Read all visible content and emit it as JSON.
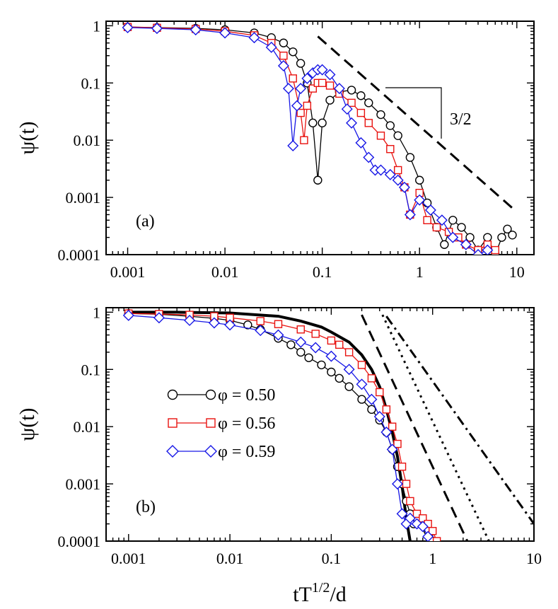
{
  "chart_data": [
    {
      "type": "line",
      "panel_label": "(a)",
      "xlabel": "",
      "ylabel": "ψ(t)",
      "xscale": "log",
      "yscale": "log",
      "xlim": [
        0.0006,
        15
      ],
      "ylim": [
        0.0001,
        1.2
      ],
      "x_ticks": [
        "0.001",
        "0.01",
        "0.1",
        "1",
        "10"
      ],
      "y_ticks": [
        "0.0001",
        "0.001",
        "0.01",
        "0.1",
        "1"
      ],
      "series": [
        {
          "name": "φ = 0.50",
          "color": "#000000",
          "marker": "circle",
          "x": [
            0.001,
            0.002,
            0.005,
            0.01,
            0.02,
            0.03,
            0.04,
            0.05,
            0.06,
            0.07,
            0.08,
            0.09,
            0.1,
            0.12,
            0.15,
            0.2,
            0.25,
            0.3,
            0.4,
            0.5,
            0.6,
            0.8,
            1.0,
            1.2,
            1.5,
            1.8,
            2.2,
            2.7,
            3.3,
            4,
            5,
            6,
            7,
            8,
            9
          ],
          "y": [
            0.95,
            0.93,
            0.9,
            0.85,
            0.75,
            0.62,
            0.5,
            0.35,
            0.22,
            0.1,
            0.02,
            0.002,
            0.02,
            0.05,
            0.07,
            0.075,
            0.06,
            0.045,
            0.028,
            0.018,
            0.012,
            0.005,
            0.002,
            0.0008,
            0.0003,
            0.00015,
            0.0004,
            0.0003,
            0.0002,
            0.00012,
            0.0002,
            0.0001,
            0.0002,
            0.00028,
            0.00022
          ]
        },
        {
          "name": "φ = 0.56",
          "color": "#e8120f",
          "marker": "square",
          "x": [
            0.001,
            0.002,
            0.005,
            0.01,
            0.02,
            0.03,
            0.04,
            0.05,
            0.06,
            0.065,
            0.07,
            0.08,
            0.09,
            0.1,
            0.12,
            0.15,
            0.2,
            0.25,
            0.3,
            0.4,
            0.5,
            0.6,
            0.7,
            0.8,
            1.0,
            1.2,
            1.5,
            2,
            2.5,
            3,
            4,
            5,
            6
          ],
          "y": [
            0.95,
            0.92,
            0.88,
            0.8,
            0.68,
            0.5,
            0.3,
            0.12,
            0.03,
            0.01,
            0.04,
            0.08,
            0.1,
            0.1,
            0.09,
            0.065,
            0.045,
            0.03,
            0.02,
            0.012,
            0.007,
            0.003,
            0.0015,
            0.0005,
            0.0012,
            0.0004,
            0.0003,
            0.00025,
            0.0002,
            0.00015,
            0.00012,
            0.00015,
            0.00012
          ]
        },
        {
          "name": "φ = 0.59",
          "color": "#1717e6",
          "marker": "diamond",
          "x": [
            0.001,
            0.002,
            0.005,
            0.01,
            0.02,
            0.03,
            0.04,
            0.045,
            0.05,
            0.055,
            0.06,
            0.07,
            0.08,
            0.09,
            0.1,
            0.12,
            0.15,
            0.18,
            0.2,
            0.25,
            0.3,
            0.35,
            0.4,
            0.5,
            0.6,
            0.7,
            0.8,
            1.0,
            1.3,
            1.7,
            2.2,
            3,
            4,
            5
          ],
          "y": [
            0.93,
            0.9,
            0.85,
            0.75,
            0.62,
            0.42,
            0.2,
            0.08,
            0.008,
            0.04,
            0.08,
            0.12,
            0.15,
            0.17,
            0.17,
            0.14,
            0.08,
            0.035,
            0.02,
            0.009,
            0.005,
            0.003,
            0.003,
            0.0025,
            0.002,
            0.0015,
            0.0005,
            0.0009,
            0.0006,
            0.0004,
            0.0002,
            0.00015,
            0.0001,
            0.00012
          ]
        }
      ],
      "lines": [
        {
          "name": "dashed power law",
          "style": "dashed",
          "x": [
            0.09,
            9.0
          ],
          "y": [
            0.65,
            0.00065
          ]
        }
      ],
      "annotations": [
        {
          "text": "3/2",
          "label": "slope triangle"
        }
      ]
    },
    {
      "type": "line",
      "panel_label": "(b)",
      "xlabel": "tT",
      "xlabel_sup": "1/2",
      "xlabel_tail": "/d",
      "ylabel": "ψ(t)",
      "xscale": "log",
      "yscale": "log",
      "xlim": [
        0.0006,
        10
      ],
      "ylim": [
        0.0001,
        1.2
      ],
      "x_ticks": [
        "0.001",
        "0.01",
        "0.1",
        "1",
        "10"
      ],
      "y_ticks": [
        "0.0001",
        "0.001",
        "0.01",
        "0.1",
        "1"
      ],
      "series": [
        {
          "name": "φ = 0.50",
          "color": "#000000",
          "marker": "circle",
          "x": [
            0.001,
            0.002,
            0.004,
            0.007,
            0.01,
            0.015,
            0.02,
            0.03,
            0.04,
            0.05,
            0.06,
            0.08,
            0.1,
            0.12,
            0.15,
            0.2,
            0.25,
            0.3,
            0.35,
            0.4,
            0.45,
            0.5,
            0.55,
            0.6,
            0.65,
            0.7,
            0.8,
            0.9,
            1.0
          ],
          "y": [
            0.95,
            0.92,
            0.85,
            0.78,
            0.72,
            0.6,
            0.5,
            0.35,
            0.27,
            0.2,
            0.16,
            0.12,
            0.09,
            0.07,
            0.05,
            0.03,
            0.02,
            0.013,
            0.008,
            0.004,
            0.002,
            0.001,
            0.0005,
            0.0003,
            0.0002,
            0.00025,
            0.0002,
            0.00015,
            0.0001
          ]
        },
        {
          "name": "φ = 0.56",
          "color": "#e8120f",
          "marker": "square",
          "x": [
            0.001,
            0.002,
            0.004,
            0.007,
            0.01,
            0.02,
            0.03,
            0.05,
            0.07,
            0.1,
            0.12,
            0.15,
            0.2,
            0.25,
            0.3,
            0.35,
            0.4,
            0.45,
            0.5,
            0.55,
            0.6,
            0.7,
            0.8,
            0.9,
            1.0,
            1.1
          ],
          "y": [
            0.95,
            0.93,
            0.9,
            0.85,
            0.8,
            0.7,
            0.62,
            0.5,
            0.42,
            0.32,
            0.27,
            0.2,
            0.12,
            0.07,
            0.04,
            0.02,
            0.01,
            0.005,
            0.002,
            0.001,
            0.0005,
            0.0003,
            0.00025,
            0.0002,
            0.00015,
            0.0001
          ]
        },
        {
          "name": "φ = 0.59",
          "color": "#1717e6",
          "marker": "diamond",
          "x": [
            0.001,
            0.002,
            0.004,
            0.007,
            0.01,
            0.02,
            0.03,
            0.05,
            0.07,
            0.1,
            0.15,
            0.2,
            0.25,
            0.3,
            0.35,
            0.4,
            0.45,
            0.5,
            0.55,
            0.6,
            0.7,
            0.8,
            0.9
          ],
          "y": [
            0.88,
            0.8,
            0.72,
            0.65,
            0.6,
            0.48,
            0.4,
            0.3,
            0.24,
            0.17,
            0.1,
            0.055,
            0.03,
            0.015,
            0.008,
            0.004,
            0.001,
            0.0003,
            0.0002,
            0.00025,
            0.0002,
            0.00018,
            0.00012
          ]
        }
      ],
      "lines": [
        {
          "name": "solid reference curve",
          "style": "solid",
          "x": [
            0.001,
            0.003,
            0.01,
            0.03,
            0.05,
            0.08,
            0.1,
            0.15,
            0.2,
            0.25,
            0.3,
            0.35,
            0.4,
            0.45,
            0.5,
            0.55,
            0.6
          ],
          "y": [
            1.0,
            1.0,
            0.97,
            0.85,
            0.7,
            0.55,
            0.45,
            0.3,
            0.18,
            0.1,
            0.05,
            0.02,
            0.008,
            0.003,
            0.0009,
            0.00025,
            0.0001
          ]
        },
        {
          "name": "dashed power law",
          "style": "dashed",
          "x": [
            0.2,
            2.2
          ],
          "y": [
            0.9,
            0.0001
          ]
        },
        {
          "name": "dotted power law",
          "style": "dotted",
          "x": [
            0.32,
            3.6
          ],
          "y": [
            0.9,
            0.0001
          ]
        },
        {
          "name": "dash-dot power law",
          "style": "dashdot",
          "x": [
            0.35,
            10
          ],
          "y": [
            0.85,
            0.0002
          ]
        }
      ],
      "legend": {
        "placement": "center-left",
        "entries": [
          {
            "label": "φ = 0.50",
            "color": "#000000",
            "marker": "circle"
          },
          {
            "label": "φ = 0.56",
            "color": "#e8120f",
            "marker": "square"
          },
          {
            "label": "φ = 0.59",
            "color": "#1717e6",
            "marker": "diamond"
          }
        ]
      }
    }
  ]
}
